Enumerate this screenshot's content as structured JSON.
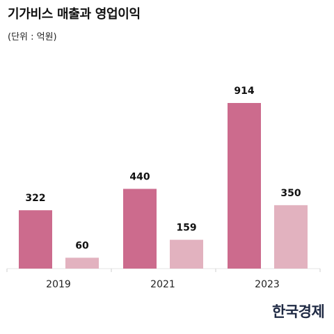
{
  "header": {
    "title": "기가비스 매출과 영업이익",
    "unit": "(단위 : 억원)"
  },
  "chart_data": {
    "type": "bar",
    "title": "기가비스 매출과 영업이익",
    "subtitle": "(단위 : 억원)",
    "categories": [
      "2019",
      "2021",
      "2023"
    ],
    "series": [
      {
        "values": [
          322,
          440,
          914
        ],
        "color": "#cc6b8d"
      },
      {
        "values": [
          60,
          159,
          350
        ],
        "color": "#e2b2bf"
      }
    ],
    "ylim": [
      0,
      1000
    ],
    "grid": false,
    "legend": "none"
  },
  "footer": {
    "logo_text": "한국경제"
  }
}
